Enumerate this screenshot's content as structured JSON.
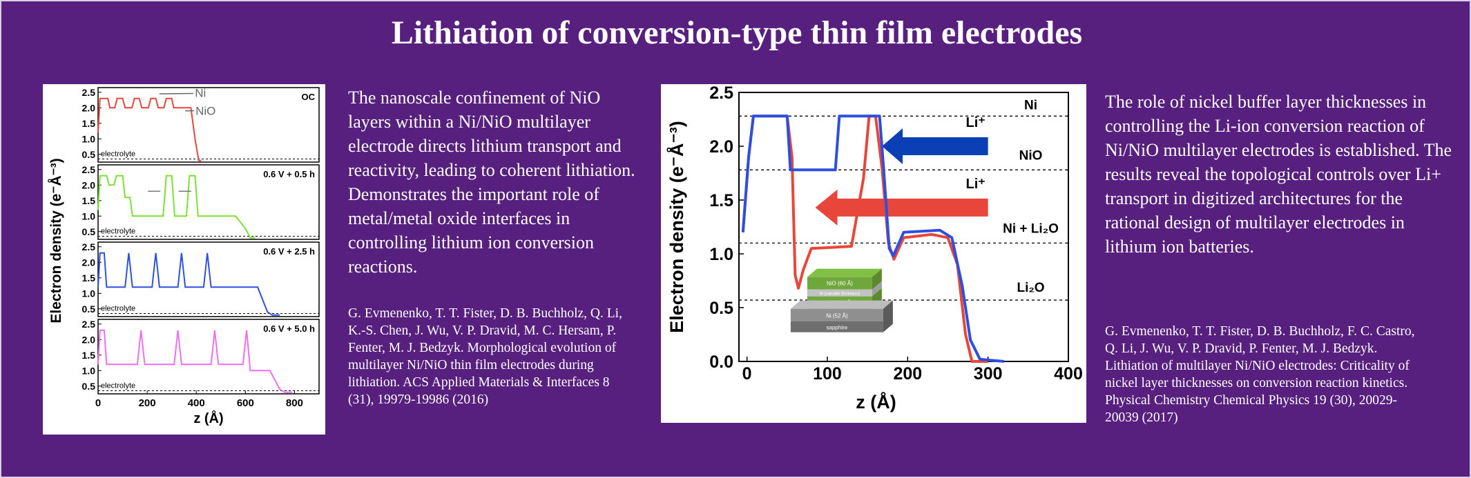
{
  "title": "Lithiation of conversion-type thin film electrodes",
  "colors": {
    "background": "#57207e",
    "red": "#e8463a",
    "green": "#7be032",
    "blue": "#2d4fe0",
    "magenta": "#ee6ef0",
    "inset_blue": "#0a3fb6"
  },
  "left_text": {
    "paragraph": "The nanoscale confinement of NiO layers within a Ni/NiO multilayer electrode directs lithium transport and reactivity, leading to coherent lithiation. Demonstrates the important role of metal/metal oxide interfaces in controlling lithium ion conversion reactions.",
    "reference": "G. Evmenenko, T. T. Fister, D. B. Buchholz, Q. Li, K.-S. Chen, J. Wu, V. P. Dravid, M. C. Hersam, P. Fenter, M. J. Bedzyk. Morphological evolution of multilayer Ni/NiO thin film electrodes during lithiation. ACS Applied Materials & Interfaces 8 (31), 19979-19986 (2016)"
  },
  "right_text": {
    "paragraph": "The role of nickel buffer layer thicknesses in controlling the Li-ion conversion reaction of Ni/NiO multilayer electrodes is established. The results reveal the topological controls over Li+ transport in digitized architectures for the rational design of multilayer electrodes in lithium ion batteries.",
    "reference": "G. Evmenenko, T. T. Fister, D. B. Buchholz, F. C. Castro, Q. Li, J. Wu, V. P. Dravid, P. Fenter, M. J. Bedzyk. Lithiation of multilayer Ni/NiO electrodes: Criticality of nickel layer thicknesses on conversion reaction kinetics. Physical Chemistry Chemical Physics 19 (30), 20029-20039 (2017)"
  },
  "chart_data": [
    {
      "type": "line",
      "xlabel": "z (Å)",
      "ylabel": "Electron density (e⁻Å⁻³)",
      "x_ticks": [
        "0",
        "200",
        "400",
        "600",
        "800"
      ],
      "y_ticks": [
        "0.5",
        "1.0",
        "1.5",
        "2.0",
        "2.5"
      ],
      "xlim": [
        0,
        900
      ],
      "ylim": [
        0.25,
        2.65
      ],
      "electrolyte_label": "electrolyte",
      "panels": [
        {
          "label": "OC",
          "color": "#e8463a",
          "points": [
            [
              0,
              1.2
            ],
            [
              8,
              2.3
            ],
            [
              40,
              2.3
            ],
            [
              48,
              2.0
            ],
            [
              68,
              2.0
            ],
            [
              78,
              2.3
            ],
            [
              100,
              2.3
            ],
            [
              110,
              2.0
            ],
            [
              138,
              2.0
            ],
            [
              148,
              2.3
            ],
            [
              168,
              2.3
            ],
            [
              178,
              2.0
            ],
            [
              205,
              2.0
            ],
            [
              215,
              2.3
            ],
            [
              235,
              2.3
            ],
            [
              245,
              2.0
            ],
            [
              268,
              2.0
            ],
            [
              278,
              2.3
            ],
            [
              300,
              2.3
            ],
            [
              308,
              2.0
            ],
            [
              378,
              2.0
            ],
            [
              395,
              1.0
            ],
            [
              410,
              0.3
            ],
            [
              420,
              0.3
            ]
          ],
          "annotations": [
            "Ni",
            "NiO"
          ]
        },
        {
          "label": "0.6 V + 0.5 h",
          "color": "#7be032",
          "points": [
            [
              0,
              1.2
            ],
            [
              8,
              2.3
            ],
            [
              35,
              2.3
            ],
            [
              45,
              2.0
            ],
            [
              65,
              2.0
            ],
            [
              75,
              2.3
            ],
            [
              100,
              2.3
            ],
            [
              110,
              1.6
            ],
            [
              130,
              1.6
            ],
            [
              140,
              1.0
            ],
            [
              265,
              1.0
            ],
            [
              278,
              2.3
            ],
            [
              300,
              2.3
            ],
            [
              312,
              1.0
            ],
            [
              360,
              1.0
            ],
            [
              372,
              2.3
            ],
            [
              395,
              2.3
            ],
            [
              407,
              1.0
            ],
            [
              560,
              1.0
            ],
            [
              600,
              0.6
            ],
            [
              620,
              0.3
            ],
            [
              640,
              0.3
            ]
          ]
        },
        {
          "label": "0.6 V + 2.5 h",
          "color": "#2d4fe0",
          "points": [
            [
              0,
              1.2
            ],
            [
              8,
              2.3
            ],
            [
              25,
              2.3
            ],
            [
              35,
              1.2
            ],
            [
              110,
              1.2
            ],
            [
              125,
              2.3
            ],
            [
              140,
              1.2
            ],
            [
              220,
              1.2
            ],
            [
              235,
              2.3
            ],
            [
              250,
              1.2
            ],
            [
              325,
              1.2
            ],
            [
              340,
              2.3
            ],
            [
              355,
              1.2
            ],
            [
              430,
              1.2
            ],
            [
              445,
              2.3
            ],
            [
              460,
              1.2
            ],
            [
              650,
              1.2
            ],
            [
              690,
              0.4
            ],
            [
              710,
              0.3
            ],
            [
              740,
              0.3
            ]
          ]
        },
        {
          "label": "0.6 V + 5.0 h",
          "color": "#ee6ef0",
          "points": [
            [
              0,
              1.2
            ],
            [
              8,
              2.3
            ],
            [
              25,
              2.3
            ],
            [
              35,
              1.2
            ],
            [
              160,
              1.2
            ],
            [
              175,
              2.3
            ],
            [
              190,
              1.2
            ],
            [
              310,
              1.2
            ],
            [
              325,
              2.3
            ],
            [
              340,
              1.2
            ],
            [
              460,
              1.2
            ],
            [
              475,
              2.3
            ],
            [
              490,
              1.2
            ],
            [
              590,
              1.2
            ],
            [
              605,
              2.3
            ],
            [
              620,
              1.0
            ],
            [
              700,
              1.0
            ],
            [
              740,
              0.4
            ],
            [
              760,
              0.3
            ],
            [
              790,
              0.3
            ]
          ]
        }
      ]
    },
    {
      "type": "line",
      "xlabel": "z (Å)",
      "ylabel": "Electron density (e⁻Å⁻³)",
      "x_ticks": [
        "0",
        "100",
        "200",
        "300",
        "400"
      ],
      "y_ticks": [
        "0.0",
        "0.5",
        "1.0",
        "1.5",
        "2.0",
        "2.5"
      ],
      "xlim": [
        -10,
        400
      ],
      "ylim": [
        0,
        2.5
      ],
      "reference_lines": [
        {
          "y": 2.28,
          "label": "Ni"
        },
        {
          "y": 1.78,
          "label": "NiO"
        },
        {
          "y": 1.1,
          "label": "Ni + Li₂O"
        },
        {
          "y": 0.57,
          "label": "Li₂O"
        }
      ],
      "arrow_label": "Li⁺",
      "series": [
        {
          "color": "#e8463a",
          "points": [
            [
              -5,
              1.2
            ],
            [
              2,
              1.9
            ],
            [
              8,
              2.28
            ],
            [
              50,
              2.28
            ],
            [
              56,
              1.9
            ],
            [
              60,
              0.8
            ],
            [
              64,
              0.68
            ],
            [
              70,
              0.85
            ],
            [
              80,
              1.05
            ],
            [
              130,
              1.07
            ],
            [
              145,
              1.7
            ],
            [
              152,
              2.28
            ],
            [
              160,
              2.28
            ],
            [
              168,
              1.8
            ],
            [
              176,
              1.1
            ],
            [
              183,
              0.95
            ],
            [
              195,
              1.15
            ],
            [
              230,
              1.18
            ],
            [
              250,
              1.15
            ],
            [
              262,
              0.9
            ],
            [
              272,
              0.25
            ],
            [
              280,
              0.0
            ],
            [
              300,
              0.0
            ]
          ]
        },
        {
          "color": "#2d4fe0",
          "points": [
            [
              -5,
              1.2
            ],
            [
              2,
              1.9
            ],
            [
              8,
              2.28
            ],
            [
              50,
              2.28
            ],
            [
              54,
              1.78
            ],
            [
              110,
              1.78
            ],
            [
              115,
              2.28
            ],
            [
              165,
              2.28
            ],
            [
              170,
              1.8
            ],
            [
              177,
              1.05
            ],
            [
              182,
              0.98
            ],
            [
              195,
              1.2
            ],
            [
              240,
              1.22
            ],
            [
              255,
              1.15
            ],
            [
              268,
              0.7
            ],
            [
              278,
              0.2
            ],
            [
              290,
              0.02
            ],
            [
              320,
              0.0
            ]
          ]
        }
      ],
      "inset_layers": [
        "NiO (60 Å)",
        "Ni (variable thickness)",
        "NiO (60 Å)",
        "Ni (52 Å)",
        "sapphire"
      ]
    }
  ]
}
